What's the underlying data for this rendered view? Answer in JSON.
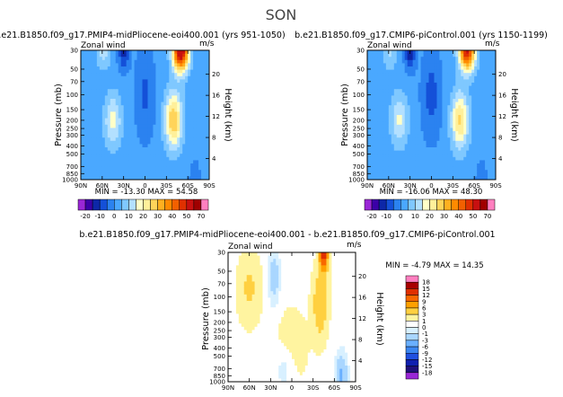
{
  "page_title": "SON",
  "chart_data": [
    {
      "type": "heatmap",
      "id": "p1",
      "title": "b.e21.B1850.f09_g17.PMIP4-midPliocene-eoi400.001  (yrs 951-1050)",
      "left_label": "Zonal wind",
      "right_label": "m/s",
      "ylabel": "Pressure (mb)",
      "y2label": "Height (km)",
      "x_ticks": [
        "90N",
        "60N",
        "30N",
        "0",
        "30S",
        "60S",
        "90S"
      ],
      "y_ticks": [
        "30",
        "50",
        "70",
        "100",
        "150",
        "200",
        "250",
        "300",
        "400",
        "500",
        "700",
        "850",
        "1000"
      ],
      "y2_ticks": [
        "4",
        "8",
        "12",
        "16",
        "20"
      ],
      "stats": "MIN = -13.30    MAX = 54.58",
      "min": -13.3,
      "max": 54.58,
      "colorbar_labels": [
        "-20",
        "-10",
        "0",
        "10",
        "20",
        "30",
        "40",
        "50",
        "70"
      ],
      "field": {
        "jets": [
          {
            "lat": -50,
            "p": 30,
            "amp": 58,
            "wlat": 11,
            "wz": 0.55
          },
          {
            "lat": -40,
            "p": 200,
            "amp": 28,
            "wlat": 12,
            "wz": 0.75
          },
          {
            "lat": 45,
            "p": 200,
            "amp": 15,
            "wlat": 12,
            "wz": 0.7
          },
          {
            "lat": 58,
            "p": 30,
            "amp": 10,
            "wlat": 10,
            "wz": 0.5
          }
        ],
        "easterly": [
          {
            "lat": 30,
            "p": 30,
            "amp": -14,
            "wlat": 8,
            "wz": 0.5
          },
          {
            "lat": 0,
            "p": 100,
            "amp": -8,
            "wlat": 14,
            "wz": 1.2
          },
          {
            "lat": -70,
            "p": 1000,
            "amp": -6,
            "wlat": 8,
            "wz": 0.5
          }
        ],
        "base": 2
      }
    },
    {
      "type": "heatmap",
      "id": "p2",
      "title": "b.e21.B1850.f09_g17.CMIP6-piControl.001  (yrs 1150-1199)",
      "left_label": "Zonal wind",
      "right_label": "m/s",
      "ylabel": "Pressure (mb)",
      "y2label": "Height (km)",
      "x_ticks": [
        "90N",
        "60N",
        "30N",
        "0",
        "30S",
        "60S",
        "90S"
      ],
      "y_ticks": [
        "30",
        "50",
        "70",
        "100",
        "150",
        "200",
        "250",
        "300",
        "400",
        "500",
        "700",
        "850",
        "1000"
      ],
      "y2_ticks": [
        "4",
        "8",
        "12",
        "16",
        "20"
      ],
      "stats": "MIN = -16.06    MAX = 48.30",
      "min": -16.06,
      "max": 48.3,
      "colorbar_labels": [
        "-20",
        "-10",
        "0",
        "10",
        "20",
        "30",
        "40",
        "50",
        "70"
      ],
      "field": {
        "jets": [
          {
            "lat": -50,
            "p": 30,
            "amp": 50,
            "wlat": 11,
            "wz": 0.55
          },
          {
            "lat": -40,
            "p": 200,
            "amp": 24,
            "wlat": 12,
            "wz": 0.75
          },
          {
            "lat": 45,
            "p": 200,
            "amp": 14,
            "wlat": 12,
            "wz": 0.7
          },
          {
            "lat": 58,
            "p": 30,
            "amp": 9,
            "wlat": 10,
            "wz": 0.5
          }
        ],
        "easterly": [
          {
            "lat": 30,
            "p": 30,
            "amp": -16,
            "wlat": 8,
            "wz": 0.5
          },
          {
            "lat": 0,
            "p": 100,
            "amp": -9,
            "wlat": 14,
            "wz": 1.2
          },
          {
            "lat": -70,
            "p": 1000,
            "amp": -6,
            "wlat": 8,
            "wz": 0.5
          }
        ],
        "base": 2
      }
    },
    {
      "type": "heatmap",
      "id": "p3",
      "title": "b.e21.B1850.f09_g17.PMIP4-midPliocene-eoi400.001  -  b.e21.B1850.f09_g17.CMIP6-piControl.001",
      "left_label": "Zonal wind",
      "right_label": "m/s",
      "ylabel": "Pressure (mb)",
      "y2label": "Height (km)",
      "x_ticks": [
        "90N",
        "60N",
        "30N",
        "0",
        "30S",
        "60S",
        "90S"
      ],
      "y_ticks": [
        "30",
        "50",
        "70",
        "100",
        "150",
        "200",
        "250",
        "300",
        "400",
        "500",
        "700",
        "850",
        "1000"
      ],
      "y2_ticks": [
        "4",
        "8",
        "12",
        "16",
        "20"
      ],
      "stats": "MIN =  -4.79    MAX =  14.35",
      "min": -4.79,
      "max": 14.35,
      "colorbar_labels": [
        "18",
        "15",
        "12",
        "9",
        "6",
        "3",
        "1",
        "0",
        "-1",
        "-3",
        "-6",
        "-9",
        "-12",
        "-15",
        "-18"
      ],
      "field": {
        "jets": [
          {
            "lat": -45,
            "p": 30,
            "amp": 14,
            "wlat": 6,
            "wz": 0.5
          },
          {
            "lat": -40,
            "p": 120,
            "amp": 5,
            "wlat": 10,
            "wz": 0.9
          },
          {
            "lat": 60,
            "p": 80,
            "amp": 3,
            "wlat": 15,
            "wz": 0.9
          },
          {
            "lat": 0,
            "p": 400,
            "amp": 1.2,
            "wlat": 25,
            "wz": 1.2
          }
        ],
        "easterly": [
          {
            "lat": 25,
            "p": 60,
            "amp": -2.5,
            "wlat": 8,
            "wz": 0.7
          },
          {
            "lat": -70,
            "p": 900,
            "amp": -4,
            "wlat": 8,
            "wz": 0.6
          },
          {
            "lat": 10,
            "p": 700,
            "amp": -1.5,
            "wlat": 15,
            "wz": 0.6
          }
        ],
        "base": 0.5
      }
    }
  ],
  "palettes": {
    "full": {
      "levels": [
        -20,
        -15,
        -10,
        -5,
        0,
        5,
        10,
        15,
        20,
        25,
        30,
        35,
        40,
        45,
        50,
        60,
        70
      ],
      "colors": [
        "#9a27d6",
        "#3b00a8",
        "#0d27a8",
        "#1450d8",
        "#2b82f0",
        "#4aa8ff",
        "#7fc8ff",
        "#b3e0ff",
        "#ffffc8",
        "#fff09a",
        "#ffd45a",
        "#ffb020",
        "#ff8a00",
        "#f26000",
        "#e03000",
        "#c81010",
        "#a00000",
        "#ff80c0"
      ]
    },
    "diff": {
      "levels": [
        -18,
        -15,
        -12,
        -9,
        -6,
        -3,
        -1,
        0,
        1,
        3,
        6,
        9,
        12,
        15,
        18
      ],
      "colors": [
        "#9a27d6",
        "#20107a",
        "#1020b0",
        "#2050e0",
        "#3b86f0",
        "#6ab0ff",
        "#a9d6ff",
        "#d8f0ff",
        "#ffffff",
        "#fff4a0",
        "#ffd040",
        "#ffa000",
        "#f86800",
        "#e03000",
        "#a80000",
        "#ff7fc0"
      ]
    }
  }
}
